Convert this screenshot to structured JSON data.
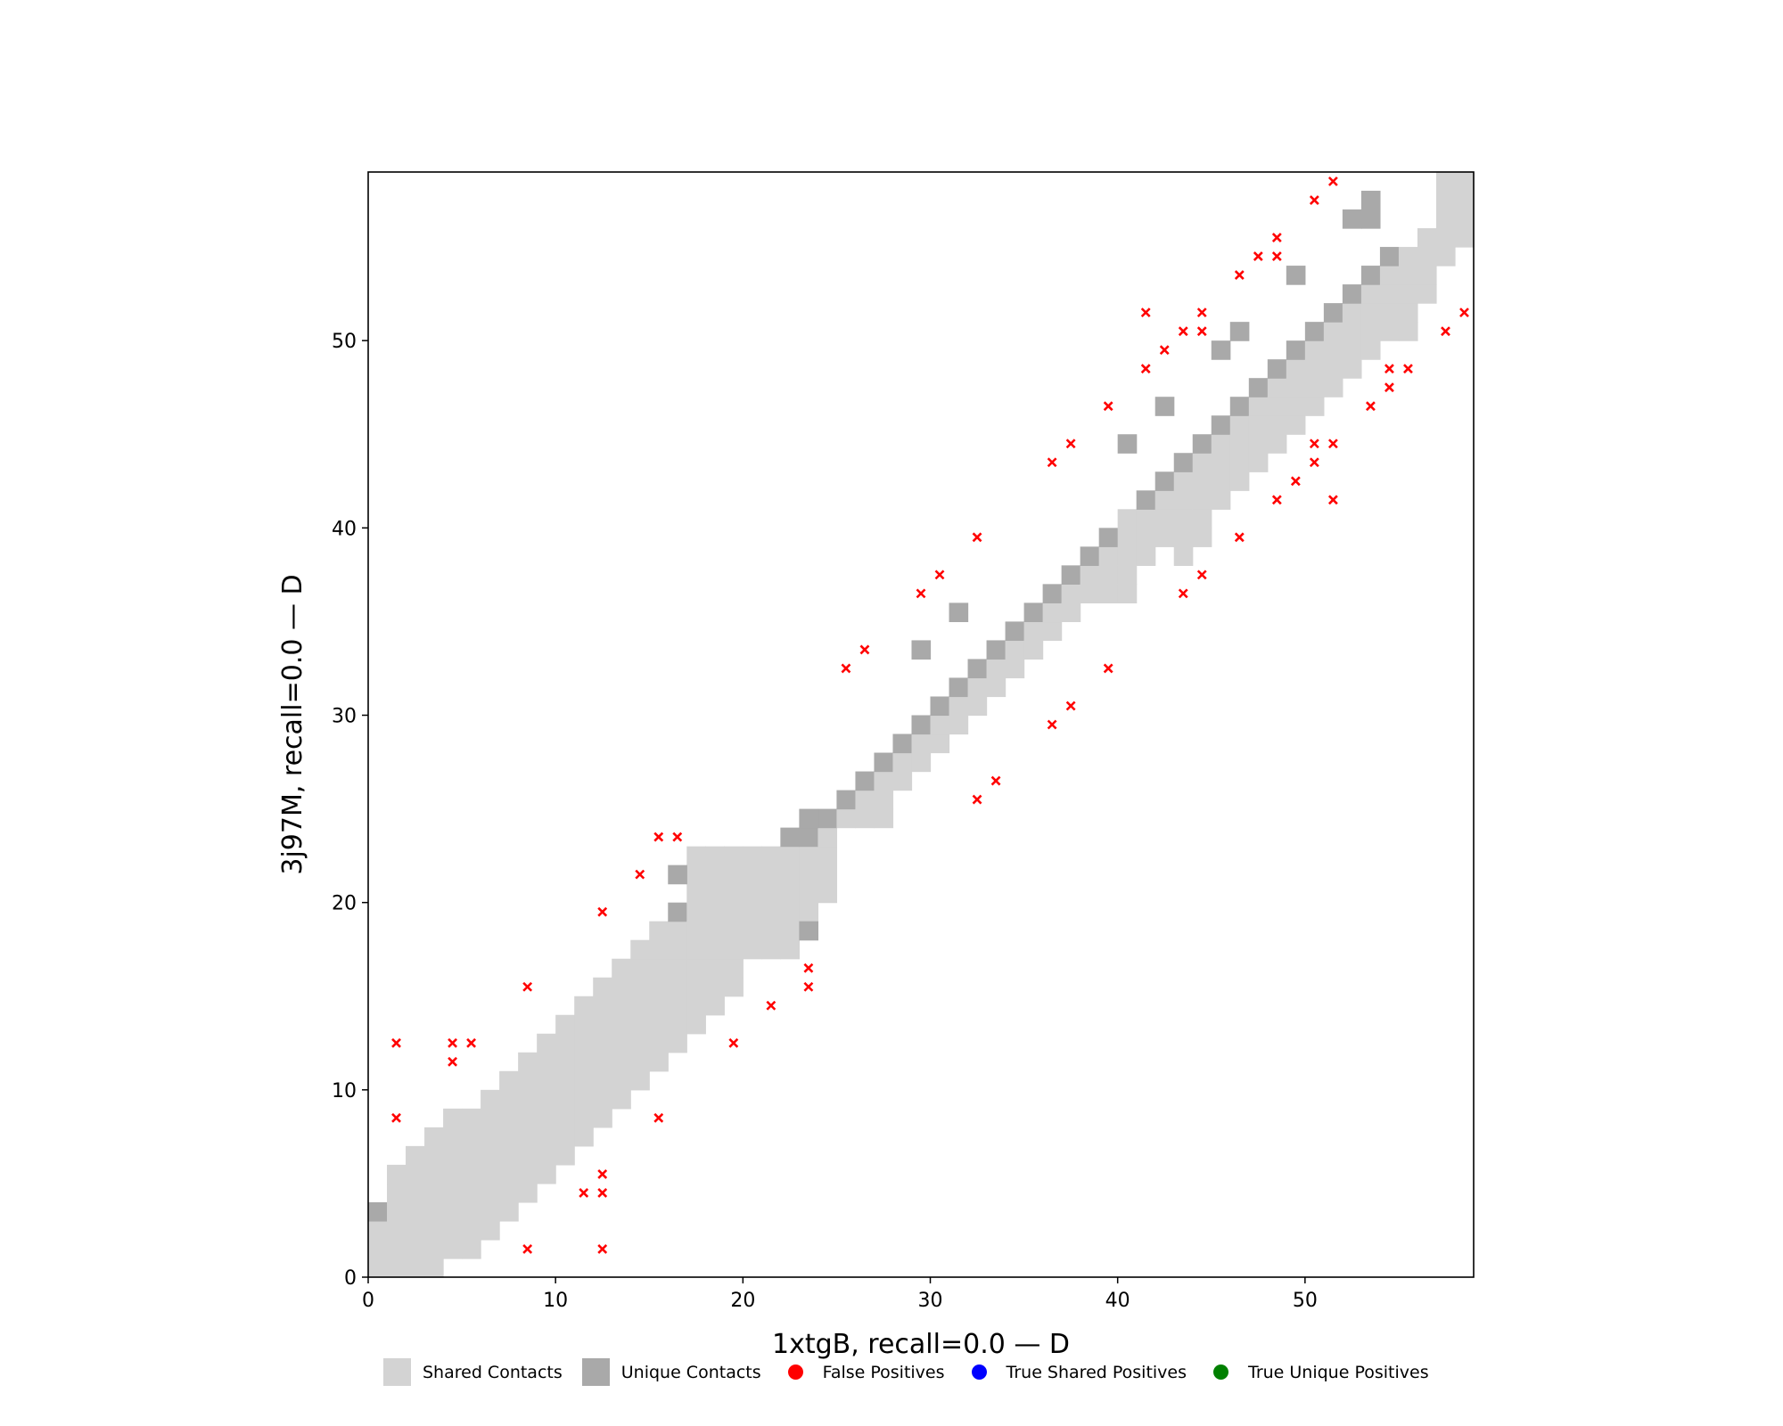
{
  "chart_data": {
    "type": "heatmap",
    "xlabel": "1xtgB, recall=0.0 — D",
    "ylabel": "3j97M, recall=0.0 — D",
    "xlim": [
      0,
      59
    ],
    "ylim": [
      0,
      59
    ],
    "xticks": [
      0,
      10,
      20,
      30,
      40,
      50
    ],
    "yticks": [
      0,
      10,
      20,
      30,
      40,
      50
    ],
    "grid": false,
    "legend_position": "bottom",
    "colors": {
      "shared": "#d3d3d3",
      "unique": "#a9a9a9",
      "false_positive": "#ff0000",
      "true_shared": "#0000ff",
      "true_unique": "#008000"
    },
    "band_columns": [
      {
        "x": 0,
        "lower": 0,
        "upper": 3,
        "unique_top": true
      },
      {
        "x": 1,
        "lower": 0,
        "upper": 5
      },
      {
        "x": 2,
        "lower": 0,
        "upper": 6
      },
      {
        "x": 3,
        "lower": 0,
        "upper": 7
      },
      {
        "x": 4,
        "lower": 1,
        "upper": 8
      },
      {
        "x": 5,
        "lower": 1,
        "upper": 8
      },
      {
        "x": 6,
        "lower": 2,
        "upper": 9
      },
      {
        "x": 7,
        "lower": 3,
        "upper": 10
      },
      {
        "x": 8,
        "lower": 4,
        "upper": 11
      },
      {
        "x": 9,
        "lower": 5,
        "upper": 12
      },
      {
        "x": 10,
        "lower": 6,
        "upper": 13
      },
      {
        "x": 11,
        "lower": 7,
        "upper": 14
      },
      {
        "x": 12,
        "lower": 8,
        "upper": 15
      },
      {
        "x": 13,
        "lower": 9,
        "upper": 16
      },
      {
        "x": 14,
        "lower": 10,
        "upper": 17
      },
      {
        "x": 15,
        "lower": 11,
        "upper": 18
      },
      {
        "x": 16,
        "lower": 12,
        "upper": 19,
        "unique_top": true
      },
      {
        "x": 17,
        "lower": 13,
        "upper": 22
      },
      {
        "x": 18,
        "lower": 14,
        "upper": 22
      },
      {
        "x": 19,
        "lower": 15,
        "upper": 22
      },
      {
        "x": 20,
        "lower": 17,
        "upper": 22
      },
      {
        "x": 21,
        "lower": 17,
        "upper": 22
      },
      {
        "x": 22,
        "lower": 17,
        "upper": 22
      },
      {
        "x": 23,
        "lower": 19,
        "upper": 23,
        "unique_top": true
      },
      {
        "x": 24,
        "lower": 20,
        "upper": 24,
        "unique_top": true
      },
      {
        "x": 25,
        "lower": 24,
        "upper": 25,
        "unique_top": true
      },
      {
        "x": 26,
        "lower": 24,
        "upper": 26,
        "unique_top": true
      },
      {
        "x": 27,
        "lower": 24,
        "upper": 27,
        "unique_top": true
      },
      {
        "x": 28,
        "lower": 26,
        "upper": 28,
        "unique_top": true
      },
      {
        "x": 29,
        "lower": 27,
        "upper": 29,
        "unique_top": true
      },
      {
        "x": 30,
        "lower": 28,
        "upper": 30,
        "unique_top": true
      },
      {
        "x": 31,
        "lower": 29,
        "upper": 31,
        "unique_top": true
      },
      {
        "x": 32,
        "lower": 30,
        "upper": 32,
        "unique_top": true
      },
      {
        "x": 33,
        "lower": 31,
        "upper": 33,
        "unique_top": true
      },
      {
        "x": 34,
        "lower": 32,
        "upper": 34,
        "unique_top": true
      },
      {
        "x": 35,
        "lower": 33,
        "upper": 35,
        "unique_top": true
      },
      {
        "x": 36,
        "lower": 34,
        "upper": 36,
        "unique_top": true
      },
      {
        "x": 37,
        "lower": 35,
        "upper": 37,
        "unique_top": true
      },
      {
        "x": 38,
        "lower": 36,
        "upper": 38,
        "unique_top": true
      },
      {
        "x": 39,
        "lower": 36,
        "upper": 39,
        "unique_top": true
      },
      {
        "x": 40,
        "lower": 36,
        "upper": 40
      },
      {
        "x": 41,
        "lower": 38,
        "upper": 41,
        "unique_top": true
      },
      {
        "x": 42,
        "lower": 39,
        "upper": 42,
        "unique_top": true
      },
      {
        "x": 43,
        "lower": 38,
        "upper": 43,
        "unique_top": true
      },
      {
        "x": 44,
        "lower": 39,
        "upper": 44,
        "unique_top": true
      },
      {
        "x": 45,
        "lower": 41,
        "upper": 45,
        "unique_top": true
      },
      {
        "x": 46,
        "lower": 42,
        "upper": 46,
        "unique_top": true
      },
      {
        "x": 47,
        "lower": 43,
        "upper": 47,
        "unique_top": true
      },
      {
        "x": 48,
        "lower": 44,
        "upper": 48,
        "unique_top": true
      },
      {
        "x": 49,
        "lower": 45,
        "upper": 49,
        "unique_top": true
      },
      {
        "x": 50,
        "lower": 46,
        "upper": 50,
        "unique_top": true
      },
      {
        "x": 51,
        "lower": 47,
        "upper": 51,
        "unique_top": true
      },
      {
        "x": 52,
        "lower": 48,
        "upper": 52,
        "unique_top": true
      },
      {
        "x": 53,
        "lower": 49,
        "upper": 53,
        "unique_top": true
      },
      {
        "x": 54,
        "lower": 50,
        "upper": 54,
        "unique_top": true
      },
      {
        "x": 55,
        "lower": 50,
        "upper": 54
      },
      {
        "x": 56,
        "lower": 52,
        "upper": 55
      },
      {
        "x": 57,
        "lower": 54,
        "upper": 58
      },
      {
        "x": 58,
        "lower": 55,
        "upper": 58
      }
    ],
    "extra_unique_cells": [
      {
        "x": 16,
        "y": 21
      },
      {
        "x": 22,
        "y": 23
      },
      {
        "x": 23,
        "y": 24
      },
      {
        "x": 23,
        "y": 18
      },
      {
        "x": 29,
        "y": 33
      },
      {
        "x": 31,
        "y": 35
      },
      {
        "x": 40,
        "y": 44
      },
      {
        "x": 42,
        "y": 46
      },
      {
        "x": 45,
        "y": 49
      },
      {
        "x": 46,
        "y": 50
      },
      {
        "x": 49,
        "y": 53
      },
      {
        "x": 52,
        "y": 56
      },
      {
        "x": 53,
        "y": 56
      },
      {
        "x": 53,
        "y": 57
      }
    ],
    "false_positives": [
      [
        1,
        12
      ],
      [
        1,
        8
      ],
      [
        4,
        12
      ],
      [
        4,
        11
      ],
      [
        5,
        12
      ],
      [
        8,
        15
      ],
      [
        8,
        1
      ],
      [
        11,
        4
      ],
      [
        12,
        19
      ],
      [
        12,
        5
      ],
      [
        12,
        4
      ],
      [
        12,
        1
      ],
      [
        14,
        21
      ],
      [
        15,
        23
      ],
      [
        16,
        23
      ],
      [
        15,
        8
      ],
      [
        19,
        12
      ],
      [
        21,
        14
      ],
      [
        23,
        16
      ],
      [
        23,
        15
      ],
      [
        25,
        32
      ],
      [
        26,
        33
      ],
      [
        29,
        36
      ],
      [
        30,
        37
      ],
      [
        32,
        39
      ],
      [
        32,
        25
      ],
      [
        33,
        26
      ],
      [
        36,
        43
      ],
      [
        36,
        29
      ],
      [
        37,
        44
      ],
      [
        37,
        30
      ],
      [
        39,
        46
      ],
      [
        39,
        32
      ],
      [
        41,
        51
      ],
      [
        41,
        48
      ],
      [
        42,
        49
      ],
      [
        43,
        50
      ],
      [
        43,
        36
      ],
      [
        44,
        51
      ],
      [
        44,
        50
      ],
      [
        44,
        37
      ],
      [
        46,
        53
      ],
      [
        46,
        39
      ],
      [
        47,
        54
      ],
      [
        48,
        55
      ],
      [
        48,
        54
      ],
      [
        48,
        41
      ],
      [
        49,
        42
      ],
      [
        50,
        57
      ],
      [
        50,
        44
      ],
      [
        50,
        43
      ],
      [
        51,
        58
      ],
      [
        51,
        44
      ],
      [
        51,
        41
      ],
      [
        53,
        46
      ],
      [
        54,
        48
      ],
      [
        54,
        47
      ],
      [
        55,
        48
      ],
      [
        57,
        50
      ],
      [
        58,
        51
      ]
    ],
    "true_shared_positives": [],
    "true_unique_positives": [],
    "legend": [
      {
        "label": "Shared Contacts",
        "kind": "rect",
        "color": "#d3d3d3"
      },
      {
        "label": "Unique Contacts",
        "kind": "rect",
        "color": "#a9a9a9"
      },
      {
        "label": "False Positives",
        "kind": "dot",
        "color": "#ff0000"
      },
      {
        "label": "True Shared Positives",
        "kind": "dot",
        "color": "#0000ff"
      },
      {
        "label": "True Unique Positives",
        "kind": "dot",
        "color": "#008000"
      }
    ]
  }
}
